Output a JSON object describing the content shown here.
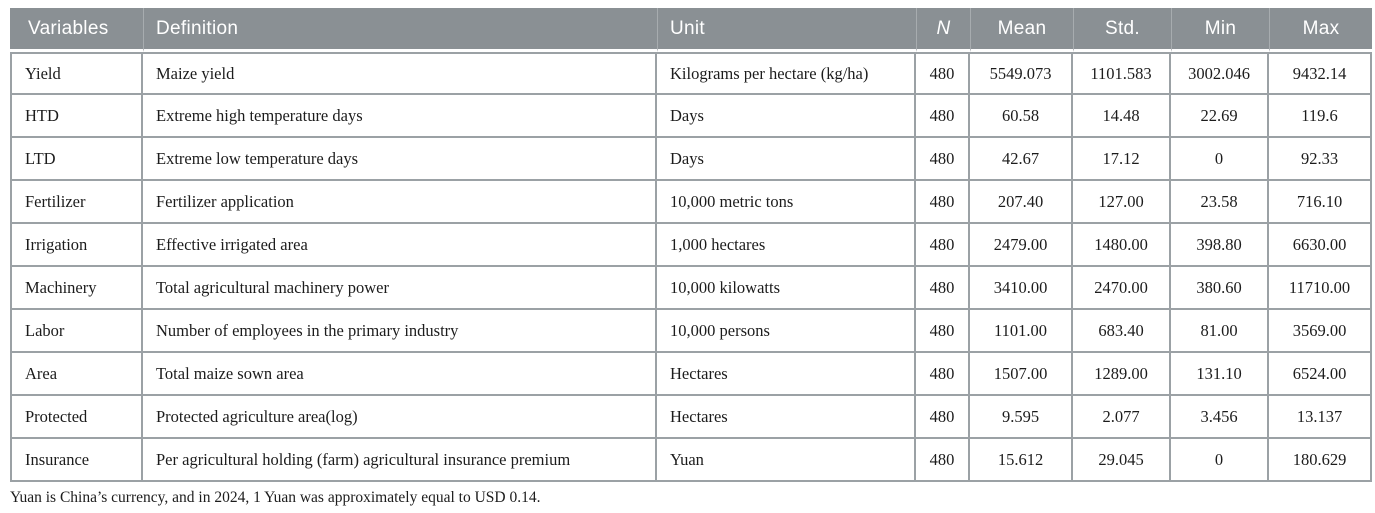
{
  "table": {
    "columns": [
      {
        "key": "variable",
        "label": "Variables"
      },
      {
        "key": "definition",
        "label": "Definition"
      },
      {
        "key": "unit",
        "label": "Unit"
      },
      {
        "key": "n",
        "label": "N"
      },
      {
        "key": "mean",
        "label": "Mean"
      },
      {
        "key": "std",
        "label": "Std."
      },
      {
        "key": "min",
        "label": "Min"
      },
      {
        "key": "max",
        "label": "Max"
      }
    ],
    "rows": [
      [
        "Yield",
        "Maize yield",
        "Kilograms per hectare (kg/ha)",
        "480",
        "5549.073",
        "1101.583",
        "3002.046",
        "9432.14"
      ],
      [
        "HTD",
        "Extreme high temperature days",
        "Days",
        "480",
        "60.58",
        "14.48",
        "22.69",
        "119.6"
      ],
      [
        "LTD",
        "Extreme low temperature days",
        "Days",
        "480",
        "42.67",
        "17.12",
        "0",
        "92.33"
      ],
      [
        "Fertilizer",
        "Fertilizer application",
        "10,000 metric tons",
        "480",
        "207.40",
        "127.00",
        "23.58",
        "716.10"
      ],
      [
        "Irrigation",
        "Effective irrigated area",
        "1,000 hectares",
        "480",
        "2479.00",
        "1480.00",
        "398.80",
        "6630.00"
      ],
      [
        "Machinery",
        "Total agricultural machinery power",
        "10,000 kilowatts",
        "480",
        "3410.00",
        "2470.00",
        "380.60",
        "11710.00"
      ],
      [
        "Labor",
        "Number of employees in the primary industry",
        "10,000 persons",
        "480",
        "1101.00",
        "683.40",
        "81.00",
        "3569.00"
      ],
      [
        "Area",
        "Total maize sown area",
        "Hectares",
        "480",
        "1507.00",
        "1289.00",
        "131.10",
        "6524.00"
      ],
      [
        "Protected",
        "Protected agriculture area(log)",
        "Hectares",
        "480",
        "9.595",
        "2.077",
        "3.456",
        "13.137"
      ],
      [
        "Insurance",
        "Per agricultural holding (farm) agricultural insurance premium",
        "Yuan",
        "480",
        "15.612",
        "29.045",
        "0",
        "180.629"
      ]
    ]
  },
  "footnote": "Yuan is China’s currency, and in 2024, 1 Yuan was approximately equal to USD 0.14.",
  "colors": {
    "header_bg": "#8A9094",
    "header_divider": "#A7ACAF",
    "grid_line": "#9BA1A5",
    "text": "#1C1C1C",
    "header_text": "#FFFFFF"
  }
}
